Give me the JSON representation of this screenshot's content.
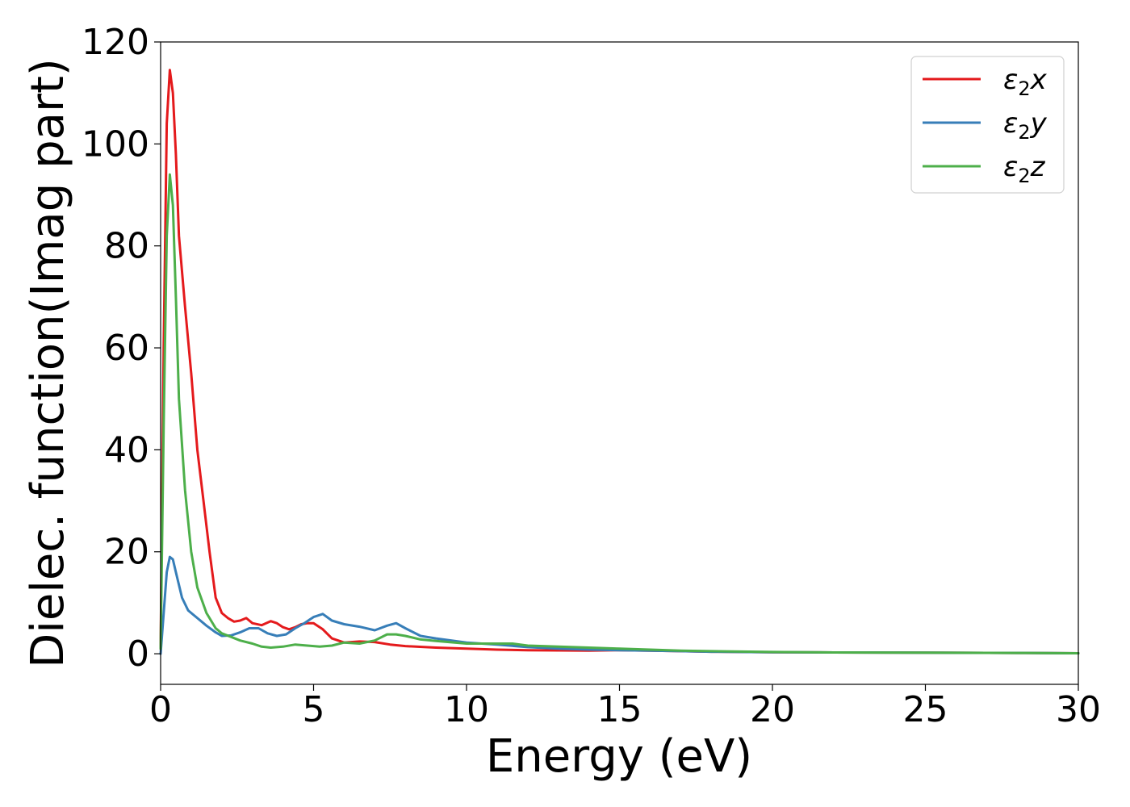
{
  "chart_data": {
    "type": "line",
    "title": "",
    "xlabel": "Energy (eV)",
    "ylabel": "Dielec. function(Imag part)",
    "xlim": [
      0,
      30
    ],
    "ylim": [
      -6,
      120
    ],
    "xticks": [
      0,
      5,
      10,
      15,
      20,
      25,
      30
    ],
    "yticks": [
      0,
      20,
      40,
      60,
      80,
      100,
      120
    ],
    "grid": false,
    "legend_position": "top-right",
    "series": [
      {
        "name": "ε₂x",
        "legend_main": "ε",
        "legend_sub": "2",
        "legend_suffix": "x",
        "color": "#e41a1c",
        "x": [
          0,
          0.1,
          0.2,
          0.3,
          0.4,
          0.5,
          0.6,
          0.8,
          1.0,
          1.2,
          1.4,
          1.6,
          1.8,
          2.0,
          2.2,
          2.4,
          2.6,
          2.8,
          3.0,
          3.3,
          3.6,
          3.8,
          4.0,
          4.2,
          4.4,
          4.6,
          4.8,
          5.0,
          5.3,
          5.6,
          6.0,
          6.5,
          7.0,
          7.5,
          8.0,
          9.0,
          10.0,
          11.0,
          12.0,
          13.0,
          14.0,
          15.0,
          16.0,
          17.0,
          18.0,
          20.0,
          22.0,
          25.0,
          28.0,
          30.0
        ],
        "y": [
          1,
          60,
          104,
          114.5,
          110,
          98,
          82,
          68,
          55,
          40,
          30,
          20,
          11,
          8,
          7,
          6.3,
          6.5,
          7,
          6,
          5.6,
          6.4,
          6,
          5.2,
          4.8,
          5.2,
          5.8,
          6,
          6,
          4.8,
          3,
          2.2,
          2.4,
          2.3,
          1.8,
          1.5,
          1.2,
          1,
          0.8,
          0.7,
          0.65,
          0.6,
          0.7,
          0.6,
          0.5,
          0.4,
          0.3,
          0.25,
          0.2,
          0.15,
          0.1
        ]
      },
      {
        "name": "ε₂y",
        "legend_main": "ε",
        "legend_sub": "2",
        "legend_suffix": "y",
        "color": "#377eb8",
        "x": [
          0,
          0.1,
          0.2,
          0.3,
          0.4,
          0.5,
          0.7,
          0.9,
          1.2,
          1.5,
          1.8,
          2.0,
          2.3,
          2.6,
          2.9,
          3.2,
          3.5,
          3.8,
          4.1,
          4.4,
          4.7,
          5.0,
          5.3,
          5.6,
          6.0,
          6.5,
          7.0,
          7.4,
          7.7,
          8.0,
          8.5,
          9.0,
          10.0,
          11.0,
          12.0,
          13.0,
          14.0,
          15.0,
          16.0,
          17.0,
          18.0,
          20.0,
          22.0,
          25.0,
          28.0,
          30.0
        ],
        "y": [
          0,
          8,
          16,
          19,
          18.5,
          16,
          11,
          8.5,
          7,
          5.5,
          4.2,
          3.5,
          3.6,
          4.2,
          5,
          5,
          4,
          3.5,
          3.8,
          5,
          6,
          7.2,
          7.8,
          6.5,
          5.8,
          5.3,
          4.6,
          5.5,
          6,
          5,
          3.5,
          3,
          2.2,
          1.8,
          1.3,
          1,
          0.8,
          0.7,
          0.6,
          0.5,
          0.4,
          0.3,
          0.25,
          0.2,
          0.15,
          0.1
        ]
      },
      {
        "name": "ε₂z",
        "legend_main": "ε",
        "legend_sub": "2",
        "legend_suffix": "z",
        "color": "#4daf4a",
        "x": [
          0,
          0.1,
          0.2,
          0.3,
          0.4,
          0.5,
          0.6,
          0.8,
          1.0,
          1.2,
          1.5,
          1.8,
          2.0,
          2.3,
          2.6,
          3.0,
          3.3,
          3.6,
          4.0,
          4.4,
          4.8,
          5.2,
          5.6,
          6.0,
          6.5,
          7.0,
          7.4,
          7.7,
          8.0,
          8.5,
          9.0,
          10.0,
          11.0,
          11.5,
          12.0,
          13.0,
          14.0,
          15.0,
          16.0,
          17.0,
          18.0,
          20.0,
          22.0,
          25.0,
          28.0,
          30.0
        ],
        "y": [
          1,
          45,
          82,
          94,
          88,
          70,
          50,
          32,
          20,
          13,
          8,
          5,
          4,
          3.3,
          2.6,
          2,
          1.4,
          1.2,
          1.4,
          1.8,
          1.6,
          1.4,
          1.6,
          2.2,
          2,
          2.6,
          3.8,
          3.8,
          3.5,
          2.8,
          2.5,
          2,
          2,
          2,
          1.6,
          1.4,
          1.2,
          1,
          0.8,
          0.6,
          0.5,
          0.35,
          0.25,
          0.2,
          0.15,
          0.1
        ]
      }
    ]
  }
}
